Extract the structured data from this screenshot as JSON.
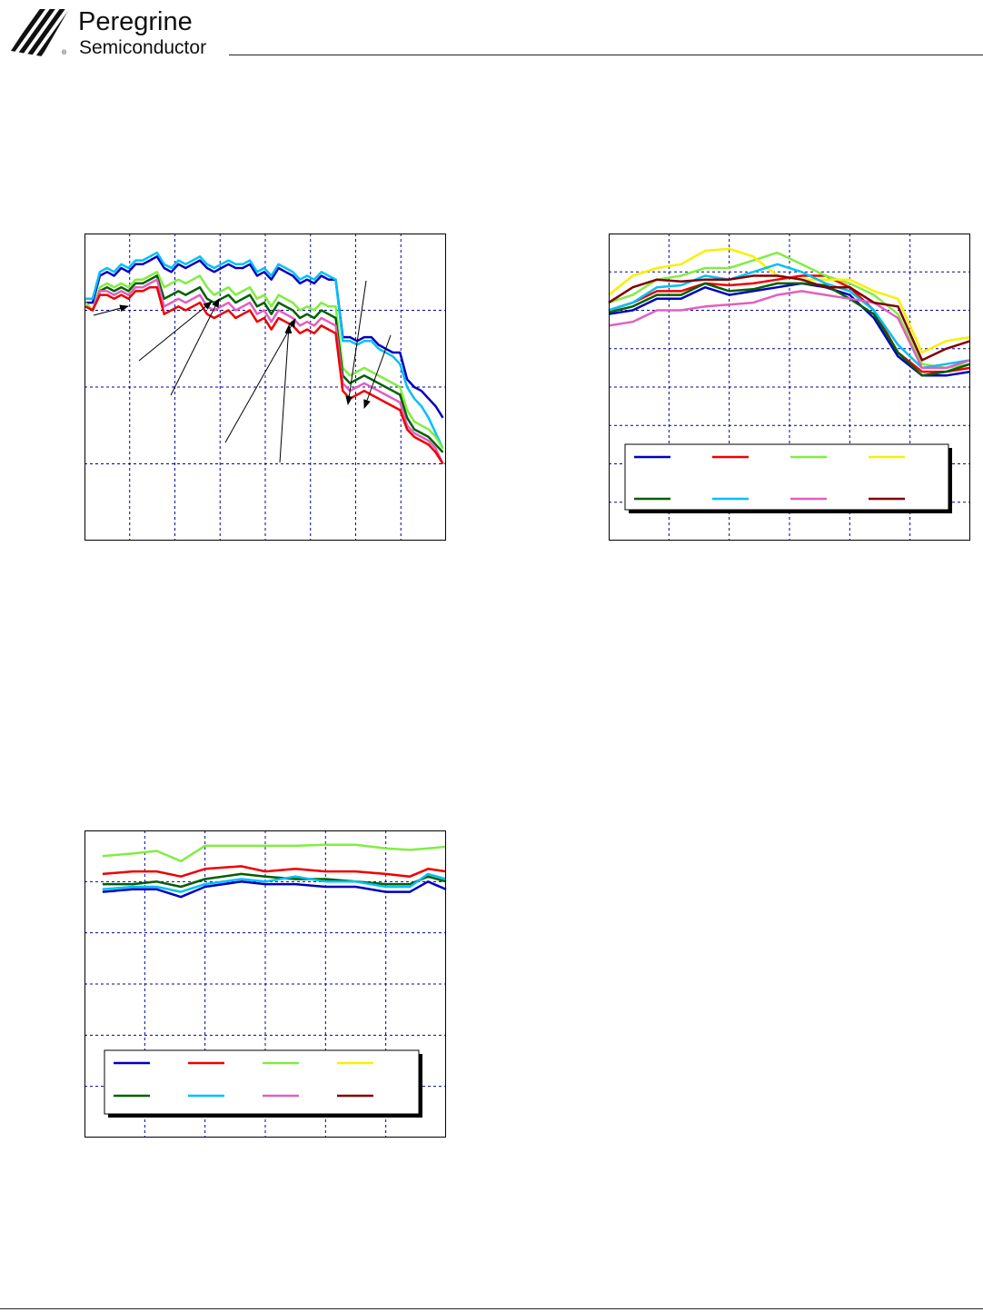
{
  "header": {
    "company_name": "Peregrine",
    "company_sub": "Semiconductor",
    "registered_mark": "®",
    "logo_icon": "peregrine-stripes-logo-icon"
  },
  "colors": {
    "series": [
      "#0000c0",
      "#ee0000",
      "#80ee40",
      "#f8f000",
      "#006000",
      "#00c0f8",
      "#e060c0",
      "#800000"
    ],
    "grid": "#0000a0",
    "arrow": "#000000",
    "frame": "#000000"
  },
  "chart_data": [
    {
      "id": "chart-1",
      "type": "line",
      "grid": true,
      "legend": "none (callout arrows)",
      "xlim": [
        0,
        8
      ],
      "ylim": [
        0,
        4
      ],
      "x_grid_lines": 8,
      "y_grid_lines": 4,
      "callout_arrows": 7,
      "series": [
        {
          "color": "#0000c0",
          "values": [
            3.1,
            3.1,
            3.45,
            3.5,
            3.45,
            3.55,
            3.5,
            3.6,
            3.6,
            3.65,
            3.7,
            3.55,
            3.5,
            3.6,
            3.55,
            3.6,
            3.65,
            3.55,
            3.5,
            3.55,
            3.6,
            3.55,
            3.55,
            3.6,
            3.45,
            3.5,
            3.4,
            3.55,
            3.5,
            3.45,
            3.35,
            3.4,
            3.35,
            3.45,
            3.4,
            3.4,
            2.65,
            2.65,
            2.6,
            2.65,
            2.65,
            2.55,
            2.5,
            2.45,
            2.45,
            2.1,
            2.0,
            1.95,
            1.85,
            1.75,
            1.6
          ]
        },
        {
          "color": "#00c0f8",
          "values": [
            3.15,
            3.15,
            3.5,
            3.55,
            3.5,
            3.6,
            3.55,
            3.65,
            3.65,
            3.7,
            3.75,
            3.6,
            3.55,
            3.65,
            3.6,
            3.65,
            3.7,
            3.6,
            3.55,
            3.6,
            3.65,
            3.6,
            3.6,
            3.65,
            3.5,
            3.55,
            3.45,
            3.6,
            3.55,
            3.5,
            3.4,
            3.45,
            3.4,
            3.5,
            3.45,
            3.4,
            2.6,
            2.6,
            2.55,
            2.6,
            2.6,
            2.5,
            2.45,
            2.4,
            2.3,
            2.0,
            1.85,
            1.75,
            1.6,
            1.4,
            1.2
          ]
        },
        {
          "color": "#80ee40",
          "values": [
            3.1,
            3.0,
            3.3,
            3.35,
            3.3,
            3.35,
            3.3,
            3.4,
            3.4,
            3.45,
            3.5,
            3.3,
            3.35,
            3.4,
            3.35,
            3.4,
            3.45,
            3.3,
            3.2,
            3.25,
            3.3,
            3.2,
            3.25,
            3.3,
            3.15,
            3.2,
            3.05,
            3.2,
            3.15,
            3.1,
            3.0,
            3.05,
            3.0,
            3.1,
            3.05,
            3.05,
            2.25,
            2.15,
            2.2,
            2.25,
            2.2,
            2.15,
            2.1,
            2.05,
            2.0,
            1.7,
            1.55,
            1.5,
            1.45,
            1.35,
            1.2
          ]
        },
        {
          "color": "#006000",
          "values": [
            3.05,
            3.0,
            3.25,
            3.3,
            3.25,
            3.3,
            3.25,
            3.35,
            3.35,
            3.4,
            3.45,
            3.15,
            3.2,
            3.25,
            3.2,
            3.25,
            3.3,
            3.15,
            3.1,
            3.15,
            3.2,
            3.1,
            3.15,
            3.2,
            3.05,
            3.1,
            2.95,
            3.1,
            3.05,
            3.0,
            2.9,
            2.95,
            2.9,
            3.0,
            2.95,
            2.9,
            2.15,
            2.05,
            2.1,
            2.15,
            2.1,
            2.05,
            2.0,
            1.95,
            1.9,
            1.6,
            1.45,
            1.4,
            1.35,
            1.25,
            1.15
          ]
        },
        {
          "color": "#e060c0",
          "values": [
            3.05,
            3.0,
            3.25,
            3.25,
            3.2,
            3.25,
            3.2,
            3.3,
            3.3,
            3.35,
            3.4,
            3.05,
            3.1,
            3.15,
            3.1,
            3.15,
            3.2,
            3.05,
            3.0,
            3.05,
            3.1,
            3.0,
            3.05,
            3.1,
            2.95,
            3.0,
            2.85,
            3.0,
            2.95,
            2.9,
            2.8,
            2.85,
            2.8,
            2.9,
            2.85,
            2.8,
            2.05,
            1.95,
            2.0,
            2.05,
            2.0,
            1.95,
            1.9,
            1.85,
            1.8,
            1.5,
            1.4,
            1.35,
            1.3,
            1.2,
            1.0
          ]
        },
        {
          "color": "#ee0000",
          "values": [
            3.05,
            3.0,
            3.2,
            3.2,
            3.15,
            3.2,
            3.15,
            3.25,
            3.25,
            3.3,
            3.3,
            2.95,
            3.0,
            3.05,
            3.0,
            3.05,
            3.1,
            2.95,
            2.9,
            2.95,
            3.0,
            2.9,
            2.95,
            3.0,
            2.85,
            2.9,
            2.75,
            2.9,
            2.85,
            2.8,
            2.7,
            2.75,
            2.7,
            2.8,
            2.75,
            2.7,
            1.95,
            1.85,
            1.9,
            1.95,
            1.9,
            1.85,
            1.8,
            1.75,
            1.7,
            1.45,
            1.35,
            1.3,
            1.25,
            1.15,
            1.0
          ]
        }
      ]
    },
    {
      "id": "chart-2",
      "type": "line",
      "grid": true,
      "legend": "bottom box",
      "xlim": [
        0,
        6
      ],
      "ylim": [
        0,
        8
      ],
      "x_grid_lines": 6,
      "y_grid_lines": 8,
      "x": [
        0.0,
        0.4,
        0.8,
        1.2,
        1.6,
        2.0,
        2.4,
        2.8,
        3.2,
        3.6,
        4.0,
        4.4,
        4.8,
        5.2,
        5.6,
        6.0
      ],
      "series": [
        {
          "color": "#0000c0",
          "values": [
            5.9,
            6.0,
            6.3,
            6.3,
            6.6,
            6.4,
            6.5,
            6.6,
            6.7,
            6.6,
            6.4,
            5.8,
            4.8,
            4.3,
            4.3,
            4.4
          ]
        },
        {
          "color": "#ee0000",
          "values": [
            6.0,
            6.2,
            6.5,
            6.5,
            6.7,
            6.65,
            6.7,
            6.8,
            6.9,
            6.9,
            6.6,
            6.0,
            4.9,
            4.4,
            4.4,
            4.5
          ]
        },
        {
          "color": "#80ee40",
          "values": [
            6.2,
            6.4,
            6.8,
            6.9,
            7.1,
            7.1,
            7.3,
            7.5,
            7.2,
            6.9,
            6.7,
            6.4,
            5.9,
            4.6,
            4.5,
            4.6
          ]
        },
        {
          "color": "#f8f000",
          "values": [
            6.4,
            6.9,
            7.1,
            7.2,
            7.55,
            7.6,
            7.4,
            6.9,
            6.8,
            6.8,
            6.8,
            6.5,
            6.3,
            4.9,
            5.2,
            5.3
          ]
        },
        {
          "color": "#006000",
          "values": [
            5.95,
            6.1,
            6.4,
            6.4,
            6.7,
            6.5,
            6.55,
            6.7,
            6.7,
            6.65,
            6.3,
            5.9,
            4.9,
            4.3,
            4.4,
            4.6
          ]
        },
        {
          "color": "#00c0f8",
          "values": [
            6.0,
            6.2,
            6.6,
            6.65,
            6.9,
            6.8,
            7.0,
            7.2,
            7.0,
            6.7,
            6.5,
            6.0,
            5.1,
            4.5,
            4.6,
            4.7
          ]
        },
        {
          "color": "#e060c0",
          "values": [
            5.6,
            5.7,
            6.0,
            6.0,
            6.1,
            6.15,
            6.2,
            6.4,
            6.5,
            6.4,
            6.3,
            6.2,
            5.8,
            4.5,
            4.5,
            4.7
          ]
        },
        {
          "color": "#800000",
          "values": [
            6.2,
            6.6,
            6.8,
            6.75,
            6.8,
            6.8,
            6.9,
            6.9,
            6.8,
            6.6,
            6.6,
            6.2,
            6.1,
            4.7,
            5.0,
            5.2
          ]
        }
      ]
    },
    {
      "id": "chart-3",
      "type": "line",
      "grid": true,
      "legend": "bottom box",
      "xlim": [
        0,
        6
      ],
      "ylim": [
        0,
        6
      ],
      "x_grid_lines": 6,
      "y_grid_lines": 6,
      "x": [
        0.3,
        0.8,
        1.2,
        1.6,
        2.0,
        2.6,
        3.0,
        3.5,
        4.0,
        4.5,
        5.0,
        5.4,
        5.7,
        6.0
      ],
      "series": [
        {
          "color": "#0000c0",
          "values": [
            4.8,
            4.85,
            4.85,
            4.7,
            4.9,
            5.0,
            4.95,
            4.95,
            4.9,
            4.9,
            4.8,
            4.8,
            5.0,
            4.85
          ]
        },
        {
          "color": "#ee0000",
          "values": [
            5.15,
            5.2,
            5.2,
            5.1,
            5.25,
            5.3,
            5.2,
            5.25,
            5.2,
            5.2,
            5.15,
            5.1,
            5.25,
            5.2
          ]
        },
        {
          "color": "#80ee40",
          "values": [
            5.5,
            5.55,
            5.6,
            5.4,
            5.7,
            5.7,
            5.7,
            5.7,
            5.72,
            5.72,
            5.65,
            5.62,
            5.65,
            5.68
          ]
        },
        {
          "color": "#006000",
          "values": [
            4.95,
            4.95,
            5.0,
            4.9,
            5.05,
            5.15,
            5.1,
            5.05,
            5.05,
            5.0,
            4.95,
            4.95,
            5.1,
            5.0
          ]
        },
        {
          "color": "#00c0f8",
          "values": [
            4.85,
            4.9,
            4.9,
            4.8,
            4.95,
            5.05,
            5.0,
            5.1,
            5.0,
            5.0,
            4.9,
            4.9,
            5.15,
            5.05
          ]
        }
      ]
    }
  ]
}
